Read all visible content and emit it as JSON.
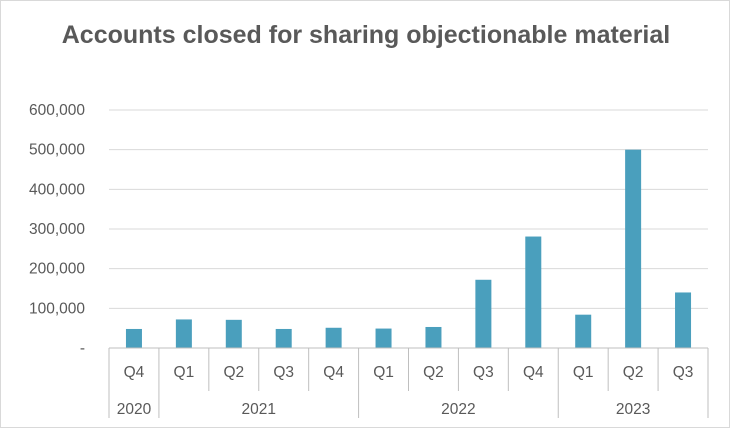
{
  "chart_data": {
    "type": "bar",
    "title": "Accounts closed for sharing objectionable material",
    "xlabel": "",
    "ylabel": "",
    "ylim": [
      0,
      600000
    ],
    "yticks": [
      0,
      100000,
      200000,
      300000,
      400000,
      500000,
      600000
    ],
    "ytick_labels": [
      "-",
      "100,000",
      "200,000",
      "300,000",
      "400,000",
      "500,000",
      "600,000"
    ],
    "grid": true,
    "legend": "none",
    "bar_color": "#4a9fbd",
    "categories": [
      "Q4",
      "Q1",
      "Q2",
      "Q3",
      "Q4",
      "Q1",
      "Q2",
      "Q3",
      "Q4",
      "Q1",
      "Q2",
      "Q3"
    ],
    "years": [
      {
        "label": "2020",
        "count": 1
      },
      {
        "label": "2021",
        "count": 4
      },
      {
        "label": "2022",
        "count": 4
      },
      {
        "label": "2023",
        "count": 3
      }
    ],
    "values": [
      48000,
      72000,
      71000,
      48000,
      51000,
      49000,
      53000,
      172000,
      281000,
      84000,
      500000,
      140000
    ]
  }
}
